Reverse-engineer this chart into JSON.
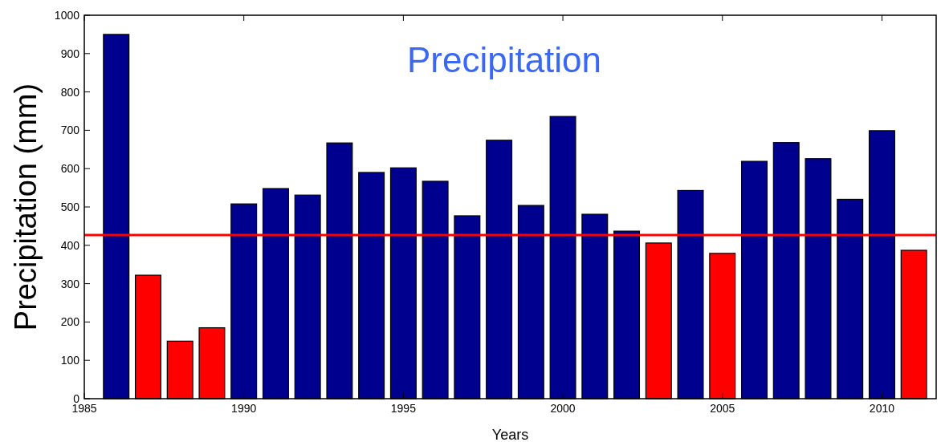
{
  "chart_data": {
    "type": "bar",
    "xlabel": "Years",
    "ylabel": "Precipitation (mm)",
    "annotations": [
      "Precipitation"
    ],
    "x": [
      1986,
      1987,
      1988,
      1989,
      1990,
      1991,
      1992,
      1993,
      1994,
      1995,
      1996,
      1997,
      1998,
      1999,
      2000,
      2001,
      2002,
      2003,
      2004,
      2005,
      2006,
      2007,
      2008,
      2009,
      2010,
      2011
    ],
    "values": [
      950,
      322,
      150,
      185,
      508,
      548,
      531,
      667,
      590,
      602,
      567,
      477,
      674,
      504,
      736,
      481,
      437,
      406,
      543,
      379,
      619,
      668,
      626,
      520,
      699,
      387
    ],
    "colors": [
      "#00008f",
      "#ff0000",
      "#ff0000",
      "#ff0000",
      "#00008f",
      "#00008f",
      "#00008f",
      "#00008f",
      "#00008f",
      "#00008f",
      "#00008f",
      "#00008f",
      "#00008f",
      "#00008f",
      "#00008f",
      "#00008f",
      "#00008f",
      "#ff0000",
      "#00008f",
      "#ff0000",
      "#00008f",
      "#00008f",
      "#00008f",
      "#00008f",
      "#00008f",
      "#ff0000"
    ],
    "xlim": [
      1985,
      2011.7
    ],
    "xticks": [
      1985,
      1990,
      1995,
      2000,
      2005,
      2010
    ],
    "ylim": [
      0,
      1000
    ],
    "yticks": [
      0,
      100,
      200,
      300,
      400,
      500,
      600,
      700,
      800,
      900,
      1000
    ],
    "ref_lines": [
      {
        "axis": "y",
        "value": 427,
        "color": "#ff0000"
      }
    ],
    "grid": false
  }
}
